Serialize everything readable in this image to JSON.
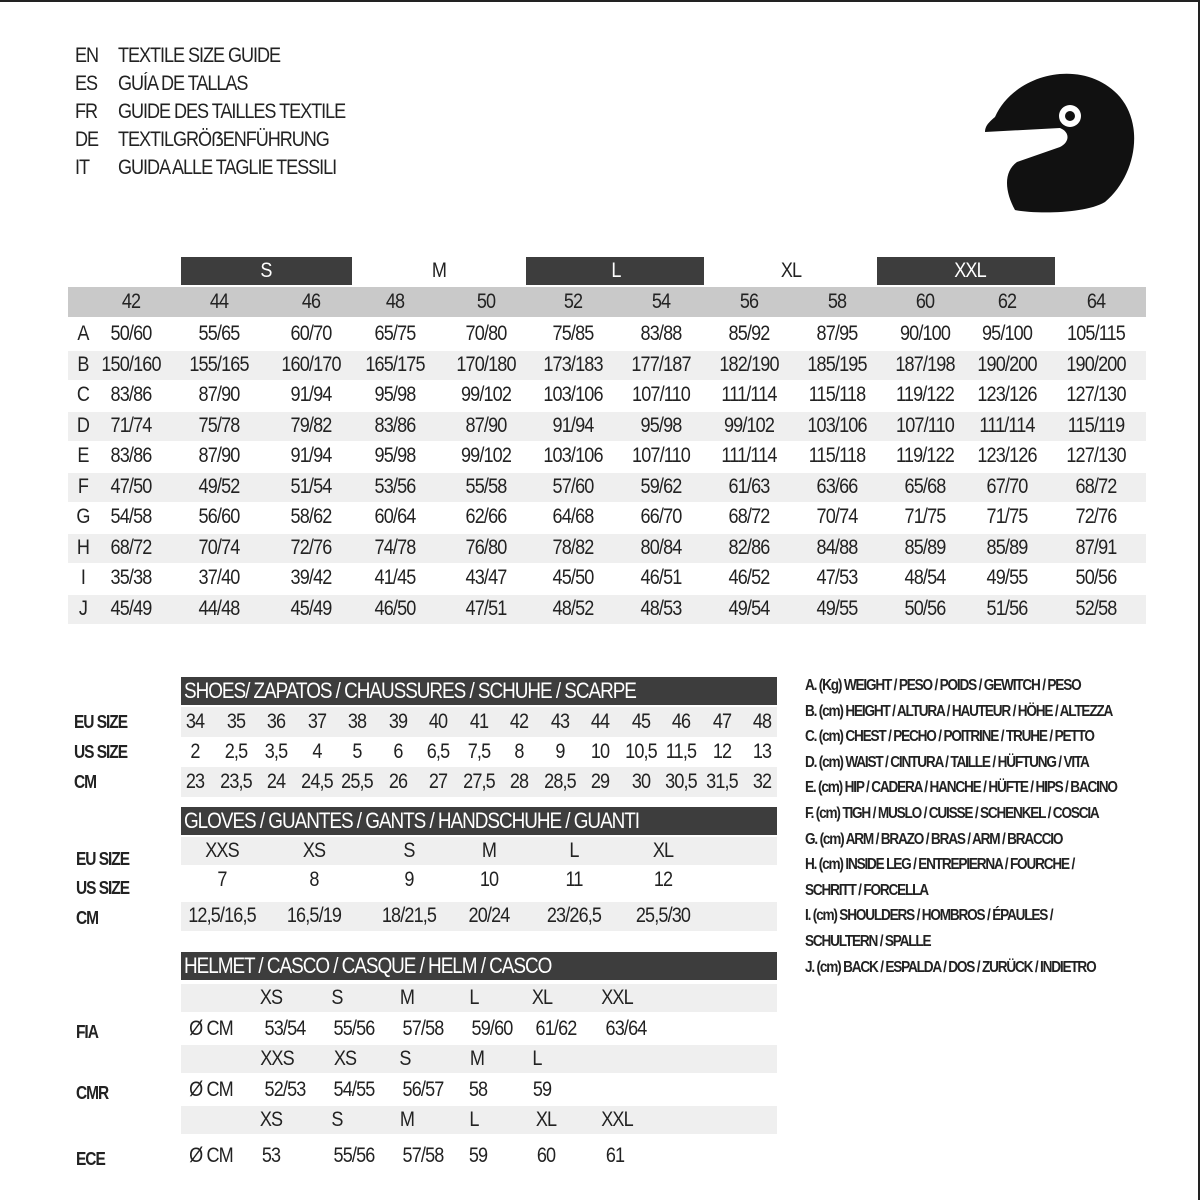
{
  "title_lines": [
    {
      "lang": "EN",
      "text": "TEXTILE SIZE GUIDE"
    },
    {
      "lang": "ES",
      "text": "GUÍA DE TALLAS"
    },
    {
      "lang": "FR",
      "text": "GUIDE DES TAILLES TEXTILE"
    },
    {
      "lang": "DE",
      "text": "TEXTILGRÖẞENFÜHRUNG"
    },
    {
      "lang": "IT",
      "text": "GUIDA ALLE TAGLIE TESSILI"
    }
  ],
  "icon": "helmet-icon",
  "colors": {
    "dark_band": "#3d3d3d",
    "header_band": "#c9c9c9",
    "row_shade": "#efefef"
  },
  "textile": {
    "size_groups": [
      "S",
      "M",
      "L",
      "XL",
      "XXL"
    ],
    "eu_sizes": [
      "42",
      "44",
      "46",
      "48",
      "50",
      "52",
      "54",
      "56",
      "58",
      "60",
      "62",
      "64"
    ],
    "rows": [
      {
        "key": "A",
        "values": [
          "50/60",
          "55/65",
          "60/70",
          "65/75",
          "70/80",
          "75/85",
          "83/88",
          "85/92",
          "87/95",
          "90/100",
          "95/100",
          "105/115"
        ]
      },
      {
        "key": "B",
        "values": [
          "150/160",
          "155/165",
          "160/170",
          "165/175",
          "170/180",
          "173/183",
          "177/187",
          "182/190",
          "185/195",
          "187/198",
          "190/200",
          "190/200"
        ]
      },
      {
        "key": "C",
        "values": [
          "83/86",
          "87/90",
          "91/94",
          "95/98",
          "99/102",
          "103/106",
          "107/110",
          "111/114",
          "115/118",
          "119/122",
          "123/126",
          "127/130"
        ]
      },
      {
        "key": "D",
        "values": [
          "71/74",
          "75/78",
          "79/82",
          "83/86",
          "87/90",
          "91/94",
          "95/98",
          "99/102",
          "103/106",
          "107/110",
          "111/114",
          "115/119"
        ]
      },
      {
        "key": "E",
        "values": [
          "83/86",
          "87/90",
          "91/94",
          "95/98",
          "99/102",
          "103/106",
          "107/110",
          "111/114",
          "115/118",
          "119/122",
          "123/126",
          "127/130"
        ]
      },
      {
        "key": "F",
        "values": [
          "47/50",
          "49/52",
          "51/54",
          "53/56",
          "55/58",
          "57/60",
          "59/62",
          "61/63",
          "63/66",
          "65/68",
          "67/70",
          "68/72"
        ]
      },
      {
        "key": "G",
        "values": [
          "54/58",
          "56/60",
          "58/62",
          "60/64",
          "62/66",
          "64/68",
          "66/70",
          "68/72",
          "70/74",
          "71/75",
          "71/75",
          "72/76"
        ]
      },
      {
        "key": "H",
        "values": [
          "68/72",
          "70/74",
          "72/76",
          "74/78",
          "76/80",
          "78/82",
          "80/84",
          "82/86",
          "84/88",
          "85/89",
          "85/89",
          "87/91"
        ]
      },
      {
        "key": "I",
        "values": [
          "35/38",
          "37/40",
          "39/42",
          "41/45",
          "43/47",
          "45/50",
          "46/51",
          "46/52",
          "47/53",
          "48/54",
          "49/55",
          "50/56"
        ]
      },
      {
        "key": "J",
        "values": [
          "45/49",
          "44/48",
          "45/49",
          "46/50",
          "47/51",
          "48/52",
          "48/53",
          "49/54",
          "49/55",
          "50/56",
          "51/56",
          "52/58"
        ]
      }
    ]
  },
  "shoes": {
    "title": "SHOES/ ZAPATOS / CHAUSSURES / SCHUHE / SCARPE",
    "rows": [
      {
        "label": "EU SIZE",
        "values": [
          "34",
          "35",
          "36",
          "37",
          "38",
          "39",
          "40",
          "41",
          "42",
          "43",
          "44",
          "45",
          "46",
          "47",
          "48"
        ]
      },
      {
        "label": "US SIZE",
        "values": [
          "2",
          "2,5",
          "3,5",
          "4",
          "5",
          "6",
          "6,5",
          "7,5",
          "8",
          "9",
          "10",
          "10,5",
          "11,5",
          "12",
          "13"
        ]
      },
      {
        "label": "CM",
        "values": [
          "23",
          "23,5",
          "24",
          "24,5",
          "25,5",
          "26",
          "27",
          "27,5",
          "28",
          "28,5",
          "29",
          "30",
          "30,5",
          "31,5",
          "32"
        ]
      }
    ]
  },
  "gloves": {
    "title": "GLOVES / GUANTES / GANTS / HANDSCHUHE / GUANTI",
    "rows": [
      {
        "label": "EU SIZE",
        "values": [
          "XXS",
          "XS",
          "S",
          "M",
          "L",
          "XL"
        ]
      },
      {
        "label": "US SIZE",
        "values": [
          "7",
          "8",
          "9",
          "10",
          "11",
          "12"
        ]
      },
      {
        "label": "CM",
        "values": [
          "12,5/16,5",
          "16,5/19",
          "18/21,5",
          "20/24",
          "23/26,5",
          "25,5/30"
        ]
      }
    ]
  },
  "helmet": {
    "title": "HELMET / CASCO / CASQUE / HELM / CASCO",
    "unit": "Ø CM",
    "standards": [
      {
        "label": "FIA",
        "sizes": [
          "XS",
          "S",
          "M",
          "L",
          "XL",
          "XXL"
        ],
        "values": [
          "53/54",
          "55/56",
          "57/58",
          "59/60",
          "61/62",
          "63/64"
        ]
      },
      {
        "label": "CMR",
        "sizes": [
          "XXS",
          "XS",
          "S",
          "M",
          "L"
        ],
        "values": [
          "52/53",
          "54/55",
          "56/57",
          "58",
          "59"
        ]
      },
      {
        "label": "ECE",
        "sizes": [
          "XS",
          "S",
          "M",
          "L",
          "XL",
          "XXL"
        ],
        "values": [
          "53",
          "55/56",
          "57/58",
          "59",
          "60",
          "61"
        ]
      }
    ]
  },
  "legend": [
    "A. (Kg) WEIGHT / PESO / POIDS / GEWITCH / PESO",
    "B. (cm) HEIGHT / ALTURA / HAUTEUR / HÖHE / ALTEZZA",
    "C. (cm) CHEST / PECHO / POITRINE / TRUHE / PETTO",
    "D. (cm) WAIST / CINTURA / TAILLE / HÜFTUNG / VITA",
    "E. (cm) HIP / CADERA / HANCHE / HÜFTE / HIPS /  BACINO",
    "F.  (cm) TIGH / MUSLO / CUISSE / SCHENKEL / COSCIA",
    "G. (cm) ARM  / BRAZO / BRAS / ARM / BRACCIO",
    "H. (cm) INSIDE LEG / ENTREPIERNA / FOURCHE /",
    "SCHRITT / FORCELLA",
    "I.  (cm) SHOULDERS / HOMBROS / ÉPAULES /",
    "SCHULTERN / SPALLE",
    "J. (cm) BACK / ESPALDA / DOS / ZURÜCK / INDIETRO"
  ]
}
